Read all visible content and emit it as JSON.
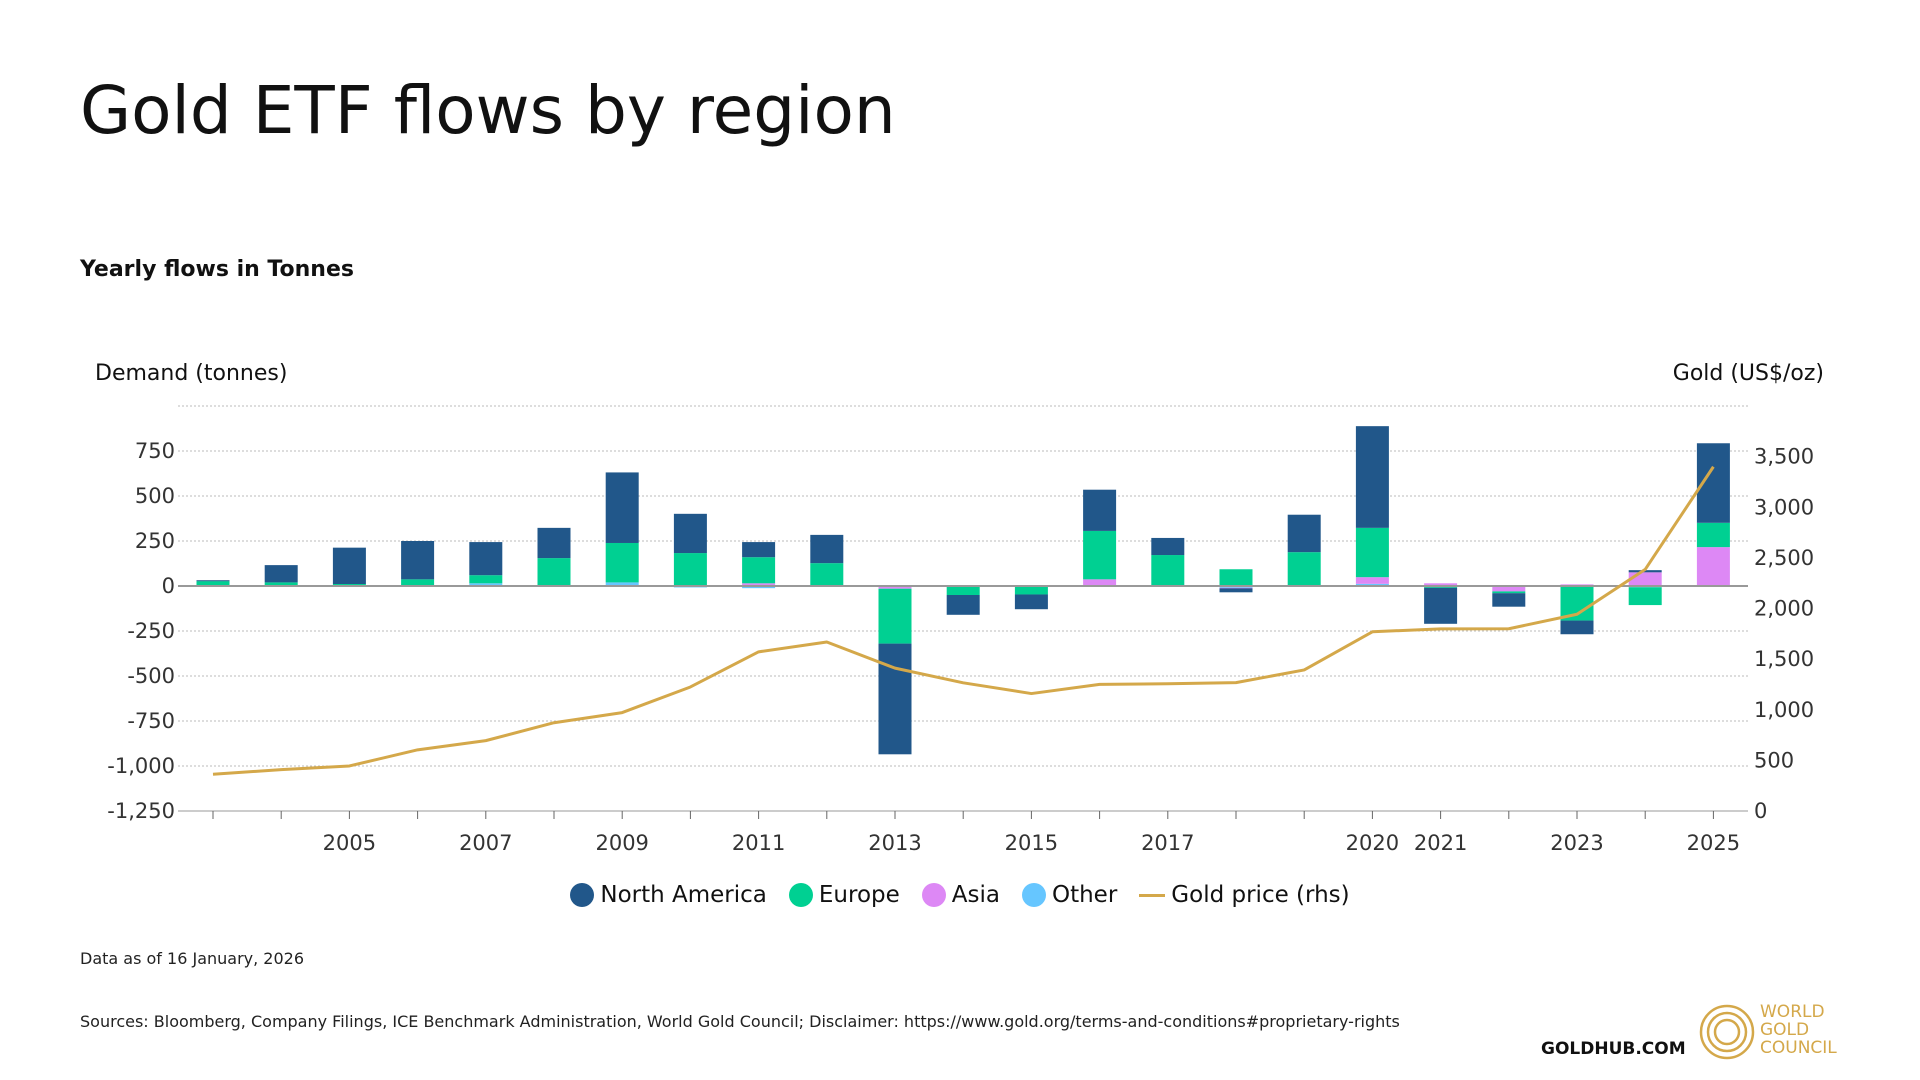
{
  "header": {
    "title": "Gold ETF flows by region",
    "subtitle": "Yearly flows in Tonnes"
  },
  "chart_data": {
    "type": "bar",
    "stacked": true,
    "title": "Gold ETF flows by region",
    "subtitle": "Yearly flows in Tonnes",
    "ylabel": "Demand (tonnes)",
    "y2label": "Gold (US$/oz)",
    "ylim": [
      -1250,
      1000
    ],
    "y2lim": [
      0,
      4000
    ],
    "yticks": [
      "750",
      "500",
      "250",
      "0",
      "-250",
      "-500",
      "-750",
      "-1,000",
      "-1,250"
    ],
    "y2ticks": [
      "3,500",
      "3,000",
      "2,500",
      "2,000",
      "1,500",
      "1,000",
      "500",
      "0"
    ],
    "grid": true,
    "legend_position": "bottom",
    "categories": [
      2003,
      2004,
      2005,
      2006,
      2007,
      2008,
      2009,
      2010,
      2011,
      2012,
      2013,
      2014,
      2015,
      2016,
      2017,
      2018,
      2019,
      2020,
      2021,
      2022,
      2023,
      2024,
      2025
    ],
    "xtick_labels": [
      "2005",
      "2007",
      "2009",
      "2011",
      "2013",
      "2015",
      "2017",
      "2020",
      "2021",
      "2023",
      "2025"
    ],
    "series": [
      {
        "name": "Other",
        "color": "#66c6ff",
        "values": [
          5,
          0,
          2,
          -2,
          15,
          0,
          20,
          -8,
          -12,
          2,
          -5,
          -5,
          0,
          5,
          0,
          -10,
          5,
          12,
          0,
          0,
          -5,
          -7,
          3
        ]
      },
      {
        "name": "Asia",
        "color": "#dd88f5",
        "values": [
          0,
          0,
          0,
          0,
          0,
          0,
          0,
          5,
          15,
          3,
          -10,
          0,
          -5,
          32,
          -5,
          -3,
          0,
          37,
          15,
          -30,
          9,
          76,
          213
        ]
      },
      {
        "name": "Europe",
        "color": "#00d092",
        "values": [
          22,
          20,
          9,
          37,
          45,
          155,
          219,
          178,
          145,
          122,
          -305,
          -45,
          -42,
          269,
          172,
          93,
          183,
          274,
          -10,
          -10,
          -187,
          -99,
          135
        ]
      },
      {
        "name": "North America",
        "color": "#21578a",
        "values": [
          5,
          96,
          202,
          213,
          184,
          168,
          392,
          218,
          84,
          157,
          -615,
          -110,
          -82,
          229,
          95,
          -22,
          208,
          565,
          -200,
          -75,
          -76,
          12,
          442
        ]
      }
    ],
    "line_series": {
      "name": "Gold price (rhs)",
      "color": "#d4a84a",
      "axis": "right",
      "values": [
        363,
        409,
        445,
        604,
        695,
        872,
        972,
        1225,
        1572,
        1669,
        1411,
        1266,
        1160,
        1251,
        1257,
        1268,
        1393,
        1770,
        1799,
        1800,
        1943,
        2386,
        3400
      ]
    }
  },
  "legend": [
    "North America",
    "Europe",
    "Asia",
    "Other",
    "Gold price (rhs)"
  ],
  "footer": {
    "as_of": "Data as of 16 January, 2026",
    "sources": "Sources: Bloomberg, Company Filings, ICE Benchmark Administration, World Gold Council; Disclaimer: https://www.gold.org/terms-and-conditions#proprietary-rights",
    "site": "GOLDHUB.COM",
    "logo_text": [
      "WORLD",
      "GOLD",
      "COUNCIL"
    ]
  }
}
